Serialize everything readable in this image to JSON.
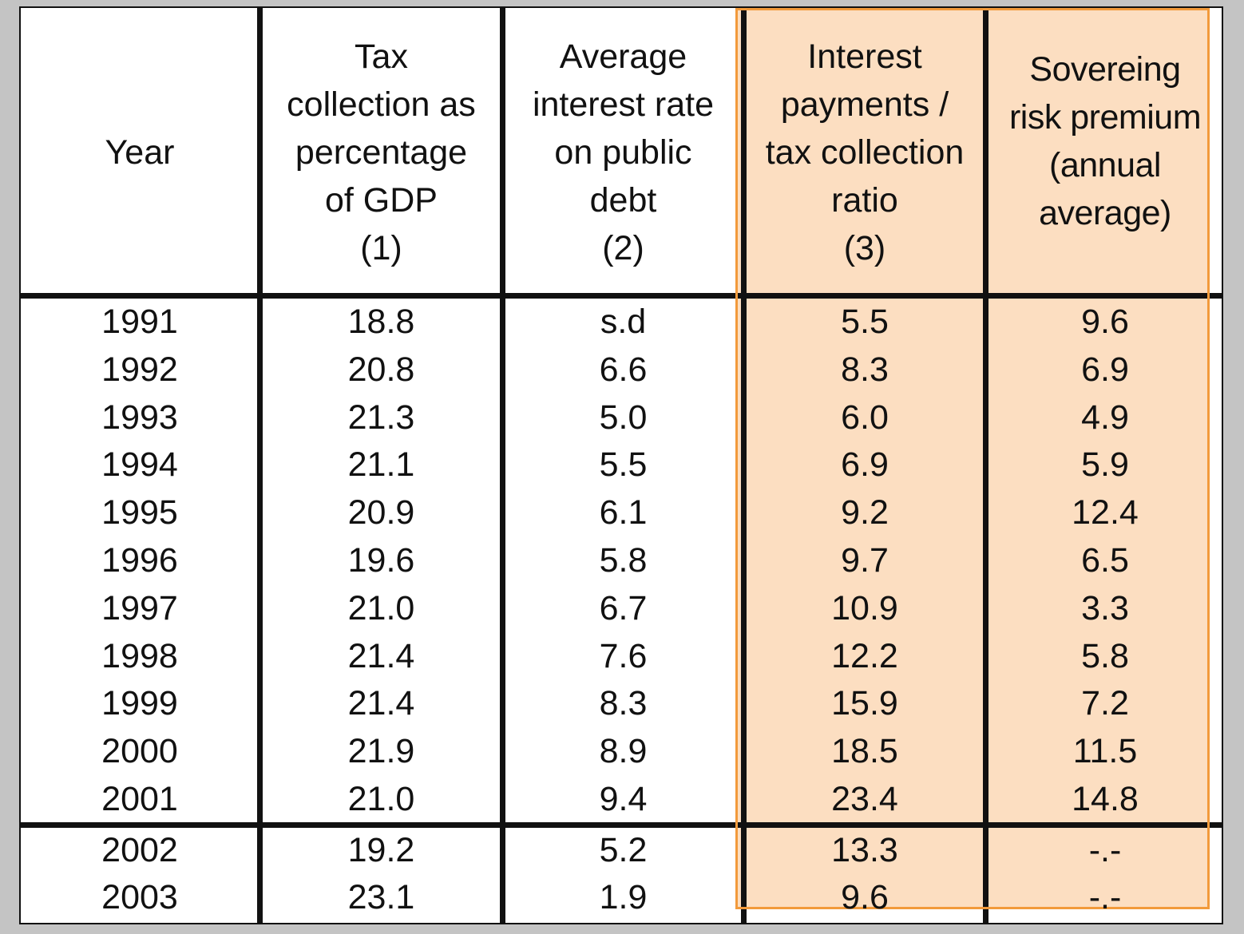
{
  "columns": [
    {
      "id": "year",
      "label": "Year"
    },
    {
      "id": "tax",
      "label": "Tax\ncollection as\npercentage\nof GDP\n(1)"
    },
    {
      "id": "rate",
      "label": "Average\ninterest rate\non public\ndebt\n(2)"
    },
    {
      "id": "ratio",
      "label": "Interest\npayments /\ntax collection\nratio\n(3)"
    },
    {
      "id": "risk",
      "label": "Sovereing\nrisk premium\n(annual\naverage)"
    }
  ],
  "rows": [
    {
      "year": "1991",
      "tax": "18.8",
      "rate": "s.d",
      "ratio": "5.5",
      "risk": "9.6"
    },
    {
      "year": "1992",
      "tax": "20.8",
      "rate": "6.6",
      "ratio": "8.3",
      "risk": "6.9"
    },
    {
      "year": "1993",
      "tax": "21.3",
      "rate": "5.0",
      "ratio": "6.0",
      "risk": "4.9"
    },
    {
      "year": "1994",
      "tax": "21.1",
      "rate": "5.5",
      "ratio": "6.9",
      "risk": "5.9"
    },
    {
      "year": "1995",
      "tax": "20.9",
      "rate": "6.1",
      "ratio": "9.2",
      "risk": "12.4"
    },
    {
      "year": "1996",
      "tax": "19.6",
      "rate": "5.8",
      "ratio": "9.7",
      "risk": "6.5"
    },
    {
      "year": "1997",
      "tax": "21.0",
      "rate": "6.7",
      "ratio": "10.9",
      "risk": "3.3"
    },
    {
      "year": "1998",
      "tax": "21.4",
      "rate": "7.6",
      "ratio": "12.2",
      "risk": "5.8"
    },
    {
      "year": "1999",
      "tax": "21.4",
      "rate": "8.3",
      "ratio": "15.9",
      "risk": "7.2"
    },
    {
      "year": "2000",
      "tax": "21.9",
      "rate": "8.9",
      "ratio": "18.5",
      "risk": "11.5"
    },
    {
      "year": "2001",
      "tax": "21.0",
      "rate": "9.4",
      "ratio": "23.4",
      "risk": "14.8"
    },
    {
      "year": "2002",
      "tax": "19.2",
      "rate": "5.2",
      "ratio": "13.3",
      "risk": "-.-"
    },
    {
      "year": "2003",
      "tax": "23.1",
      "rate": "1.9",
      "ratio": "9.6",
      "risk": "-.-"
    }
  ],
  "highlight": {
    "columns": [
      "ratio",
      "risk"
    ],
    "color": "#f7b06c",
    "border_color": "#f29a3b"
  },
  "colors": {
    "background": "#c4c4c4",
    "table": "#ffffff",
    "rules": "#111111"
  }
}
